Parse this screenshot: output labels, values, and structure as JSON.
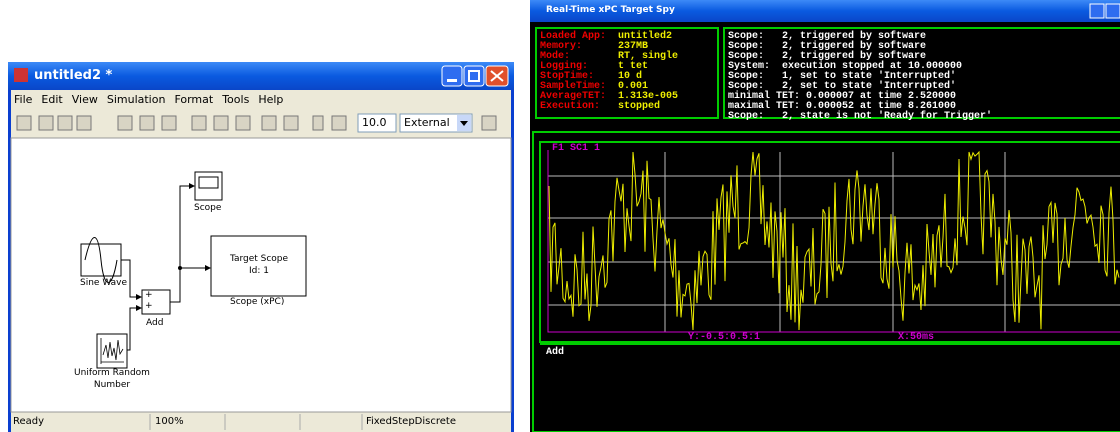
{
  "simulink": {
    "title": "untitled2 *",
    "menu": [
      "File",
      "Edit",
      "View",
      "Simulation",
      "Format",
      "Tools",
      "Help"
    ],
    "toolbar": {
      "stop_time": "10.0",
      "mode": "External"
    },
    "blocks": {
      "scope": "Scope",
      "target_scope": [
        "Target Scope",
        "Id: 1"
      ],
      "target_scope_label": "Scope (xPC)",
      "sine": "Sine Wave",
      "add": "Add",
      "add_ports": [
        "+",
        "+"
      ],
      "random": [
        "Uniform Random",
        "Number"
      ]
    },
    "status": [
      "Ready",
      "100%",
      "FixedStepDiscrete"
    ]
  },
  "spy": {
    "title": "Real-Time xPC Target Spy",
    "info": [
      {
        "label": "Loaded App:",
        "value": "untitled2"
      },
      {
        "label": "Memory:",
        "value": "237MB"
      },
      {
        "label": "Mode:",
        "value": "RT, single"
      },
      {
        "label": "Logging:",
        "value": "t tet"
      },
      {
        "label": "StopTime:",
        "value": "10 d"
      },
      {
        "label": "SampleTime:",
        "value": "0.001"
      },
      {
        "label": "AverageTET:",
        "value": "1.313e-005"
      },
      {
        "label": "Execution:",
        "value": "stopped"
      }
    ],
    "log": [
      "Scope:   2, triggered by software",
      "Scope:   2, triggered by software",
      "Scope:   2, triggered by software",
      "System:  execution stopped at 10.000000",
      "Scope:   1, set to state 'Interrupted'",
      "Scope:   2, set to state 'Interrupted'",
      "minimal TET: 0.000007 at time 2.520000",
      "maximal TET: 0.000052 at time 8.261000",
      "Scope:   2, state is not 'Ready for Trigger'"
    ],
    "scope": {
      "title": "F1 SC1 1",
      "y_label": "Y:-0.5:0.5:1",
      "x_label": "X:50ms"
    },
    "panel": "Add"
  }
}
